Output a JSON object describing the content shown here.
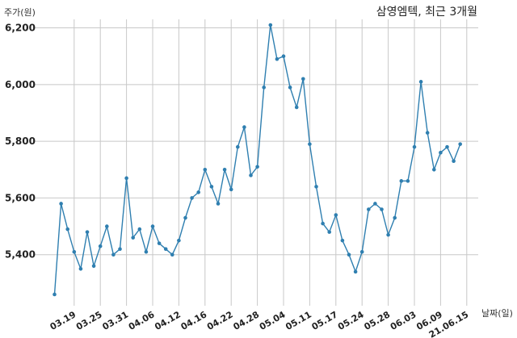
{
  "chart_data": {
    "type": "line",
    "title": "삼영엠텍, 최근 3개월",
    "ylabel": "주가(원)",
    "xlabel": "날짜(일)",
    "ylim": [
      5220,
      6230
    ],
    "yticks": [
      5400,
      5600,
      5800,
      6000,
      6200
    ],
    "ytick_labels": [
      "5,400",
      "5,600",
      "5,800",
      "6,000",
      "6,200"
    ],
    "grid": true,
    "line_color": "#2f7fb0",
    "x_tick_labels": [
      "03.19",
      "03.25",
      "03.31",
      "04.06",
      "04.12",
      "04.16",
      "04.22",
      "04.28",
      "05.04",
      "05.11",
      "05.17",
      "05.24",
      "05.28",
      "06.03",
      "06.09",
      "21.06.15"
    ],
    "x_tick_index": [
      3,
      7,
      11,
      15,
      19,
      23,
      27,
      31,
      35,
      39,
      43,
      47,
      51,
      55,
      59,
      63
    ],
    "values": [
      5260,
      5580,
      5490,
      5410,
      5350,
      5480,
      5360,
      5430,
      5500,
      5400,
      5420,
      5670,
      5460,
      5490,
      5410,
      5500,
      5440,
      5420,
      5400,
      5450,
      5530,
      5600,
      5620,
      5700,
      5640,
      5580,
      5700,
      5630,
      5780,
      5850,
      5680,
      5710,
      5990,
      6210,
      6090,
      6100,
      5990,
      5920,
      6020,
      5790,
      5640,
      5510,
      5480,
      5540,
      5450,
      5400,
      5340,
      5410,
      5560,
      5580,
      5560,
      5470,
      5530,
      5660,
      5660,
      5780,
      6010,
      5830,
      5700,
      5760,
      5780,
      5730,
      5790
    ]
  }
}
